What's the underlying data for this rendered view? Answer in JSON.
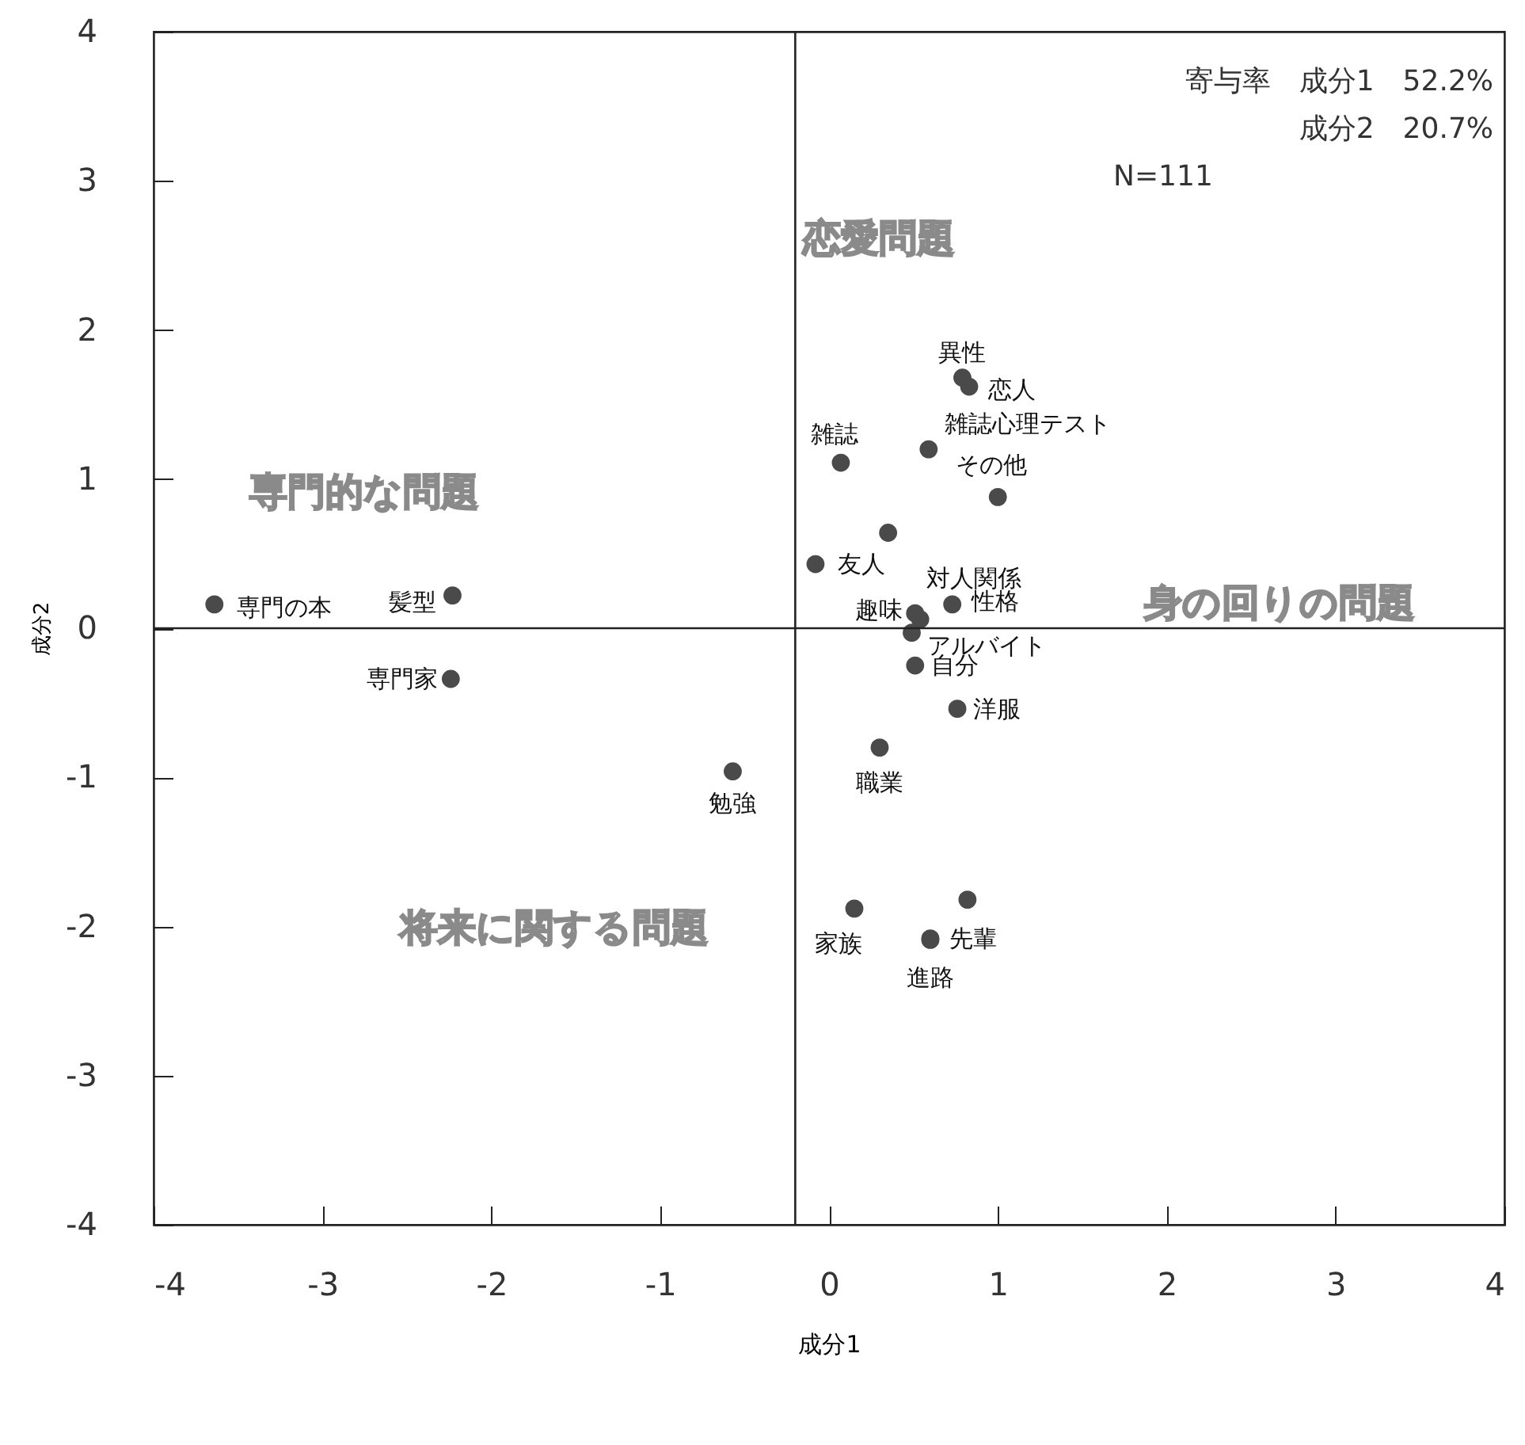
{
  "chart_data": {
    "type": "scatter",
    "xlabel": "成分1",
    "ylabel": "成分2",
    "xlim": [
      -4,
      4
    ],
    "ylim": [
      -4,
      4
    ],
    "xticks": [
      -4,
      -3,
      -2,
      -1,
      0,
      1,
      2,
      3,
      4
    ],
    "yticks": [
      -4,
      -3,
      -2,
      -1,
      0,
      1,
      2,
      3,
      4
    ],
    "grid": false,
    "marker": "circle",
    "series": [
      {
        "color": "#4a4a4a",
        "x": [
          -3.64,
          -2.23,
          -2.24,
          -0.57,
          -0.08,
          0.35,
          0.07,
          0.59,
          1.0,
          0.79,
          0.83,
          0.51,
          0.54,
          0.73,
          0.49,
          0.51,
          0.76,
          0.3,
          0.15,
          0.6,
          0.6,
          0.82
        ],
        "values": [
          0.16,
          0.22,
          -0.34,
          -0.96,
          0.43,
          0.64,
          1.11,
          1.2,
          0.88,
          1.68,
          1.62,
          0.1,
          0.06,
          0.16,
          -0.03,
          -0.25,
          -0.54,
          -0.8,
          -1.88,
          -2.08,
          -2.09,
          -1.82
        ],
        "value_labels": [
          "専門の本",
          "髪型",
          "専門家",
          "勉強",
          "友人",
          null,
          "雑誌",
          "雑誌心理テスト",
          "その他",
          "異性",
          "恋人",
          "趣味",
          "対人関係",
          "性格",
          "アルバイト",
          "自分",
          "洋服",
          "職業",
          "家族",
          "先輩",
          "進路",
          null
        ]
      }
    ],
    "ref_lines": [
      {
        "axis": "y",
        "value": 0
      },
      {
        "axis": "x",
        "value": -0.2
      }
    ],
    "annotations": [
      "恋愛問題",
      "専門的な問題",
      "身の回りの問題",
      "将来に関する問題",
      "寄与率　成分1　52.2%",
      "成分2　20.7%",
      "N=111"
    ]
  }
}
